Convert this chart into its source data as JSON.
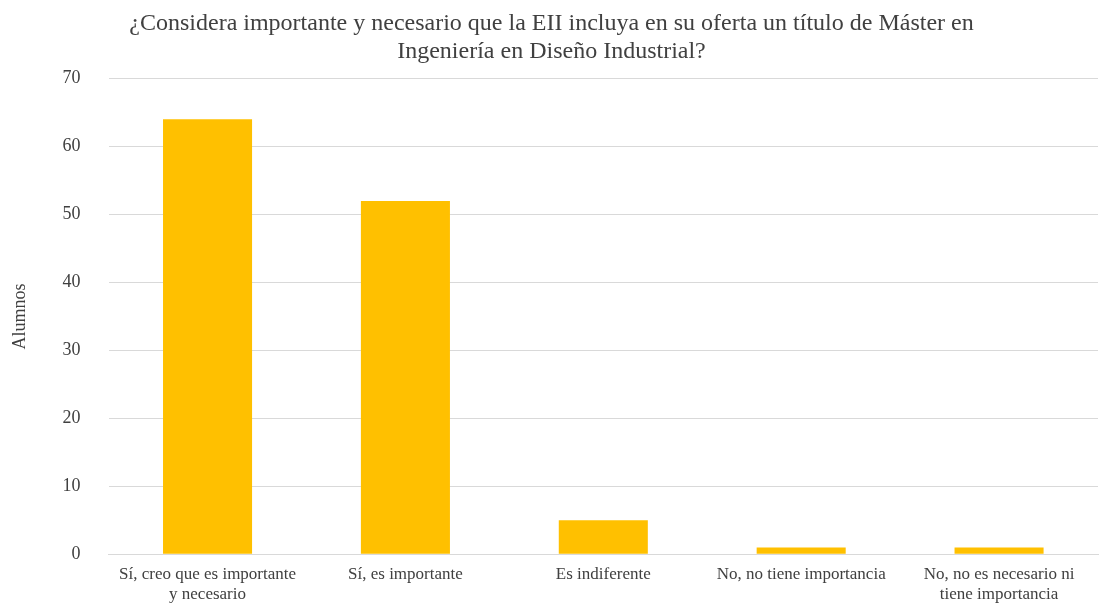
{
  "chart_data": {
    "type": "bar",
    "title": "¿Considera importante y necesario que la EII incluya en su oferta un título de Máster en Ingeniería en Diseño Industrial?",
    "ylabel": "Alumnos",
    "categories": [
      "Sí, creo que es importante y necesario",
      "Sí, es importante",
      "Es indiferente",
      "No, no tiene importancia",
      "No, no es necesario ni tiene importancia"
    ],
    "values": [
      64,
      52,
      5,
      1,
      1
    ],
    "color": "#ffc000",
    "ylim": [
      0,
      70
    ],
    "yticks": [
      0,
      10,
      20,
      30,
      40,
      50,
      60,
      70
    ],
    "grid": "y",
    "legend": false
  }
}
